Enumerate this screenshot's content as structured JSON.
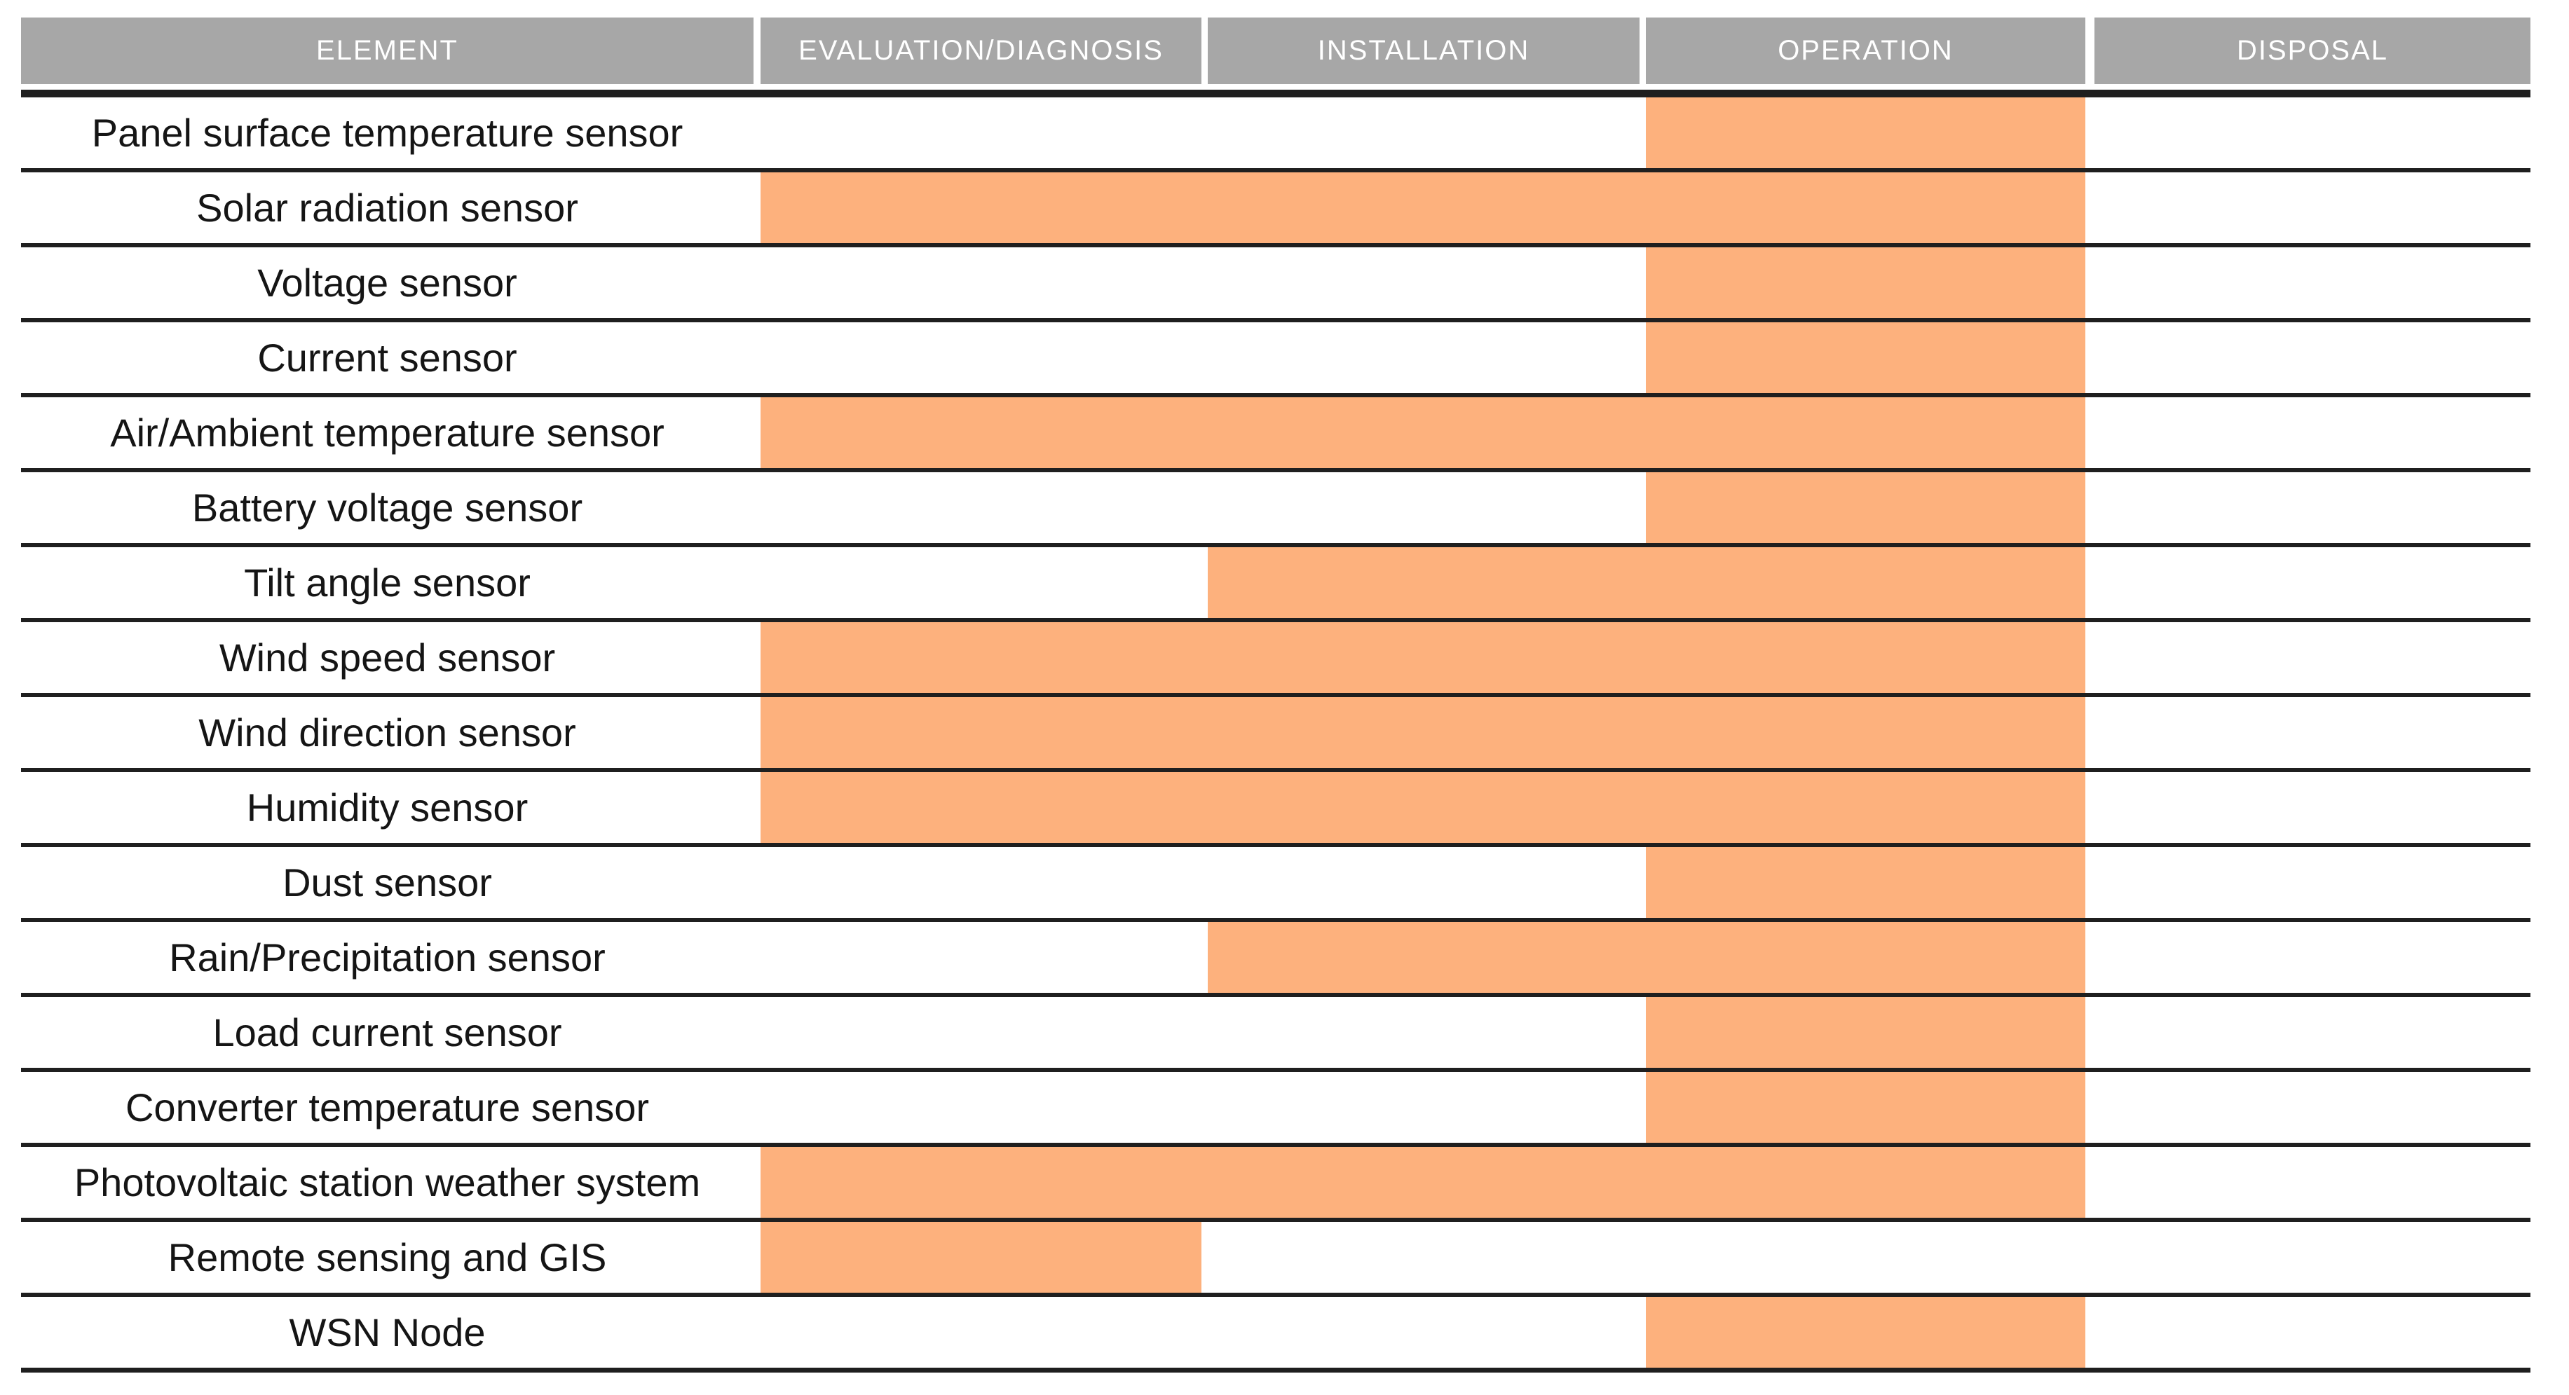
{
  "colors": {
    "background": "#ffffff",
    "header_bg": "#a7a7a7",
    "header_text": "#ffffff",
    "bar_fill": "#fdb17d",
    "rule": "#1f1f1f",
    "row_text": "#151515"
  },
  "table": {
    "columns": [
      {
        "key": "element",
        "label": "ELEMENT"
      },
      {
        "key": "evaluation",
        "label": "EVALUATION/DIAGNOSIS"
      },
      {
        "key": "installation",
        "label": "INSTALLATION"
      },
      {
        "key": "operation",
        "label": "OPERATION"
      },
      {
        "key": "disposal",
        "label": "DISPOSAL"
      }
    ],
    "rows": [
      {
        "label": "Panel surface temperature sensor",
        "phase_start": "operation",
        "phase_end": "operation"
      },
      {
        "label": "Solar radiation sensor",
        "phase_start": "evaluation",
        "phase_end": "operation"
      },
      {
        "label": "Voltage sensor",
        "phase_start": "operation",
        "phase_end": "operation"
      },
      {
        "label": "Current sensor",
        "phase_start": "operation",
        "phase_end": "operation"
      },
      {
        "label": "Air/Ambient temperature sensor",
        "phase_start": "evaluation",
        "phase_end": "operation"
      },
      {
        "label": "Battery voltage sensor",
        "phase_start": "operation",
        "phase_end": "operation"
      },
      {
        "label": "Tilt angle sensor",
        "phase_start": "installation",
        "phase_end": "operation"
      },
      {
        "label": "Wind speed sensor",
        "phase_start": "evaluation",
        "phase_end": "operation"
      },
      {
        "label": "Wind direction sensor",
        "phase_start": "evaluation",
        "phase_end": "operation"
      },
      {
        "label": "Humidity sensor",
        "phase_start": "evaluation",
        "phase_end": "operation"
      },
      {
        "label": "Dust sensor",
        "phase_start": "operation",
        "phase_end": "operation"
      },
      {
        "label": "Rain/Precipitation sensor",
        "phase_start": "installation",
        "phase_end": "operation"
      },
      {
        "label": "Load current sensor",
        "phase_start": "operation",
        "phase_end": "operation"
      },
      {
        "label": "Converter temperature sensor",
        "phase_start": "operation",
        "phase_end": "operation"
      },
      {
        "label": "Photovoltaic station weather system",
        "phase_start": "evaluation",
        "phase_end": "operation"
      },
      {
        "label": "Remote sensing and GIS",
        "phase_start": "evaluation",
        "phase_end": "evaluation"
      },
      {
        "label": "WSN Node",
        "phase_start": "operation",
        "phase_end": "operation"
      }
    ]
  },
  "chart_data": {
    "type": "table",
    "title": "",
    "columns": [
      "ELEMENT",
      "EVALUATION/DIAGNOSIS",
      "INSTALLATION",
      "OPERATION",
      "DISPOSAL"
    ],
    "legend_position": "none",
    "grid": "horizontal-rules-only",
    "rows": [
      {
        "element": "Panel surface temperature sensor",
        "covered_phases": [
          "OPERATION"
        ]
      },
      {
        "element": "Solar radiation sensor",
        "covered_phases": [
          "EVALUATION/DIAGNOSIS",
          "INSTALLATION",
          "OPERATION"
        ]
      },
      {
        "element": "Voltage sensor",
        "covered_phases": [
          "OPERATION"
        ]
      },
      {
        "element": "Current sensor",
        "covered_phases": [
          "OPERATION"
        ]
      },
      {
        "element": "Air/Ambient temperature sensor",
        "covered_phases": [
          "EVALUATION/DIAGNOSIS",
          "INSTALLATION",
          "OPERATION"
        ]
      },
      {
        "element": "Battery voltage sensor",
        "covered_phases": [
          "OPERATION"
        ]
      },
      {
        "element": "Tilt angle sensor",
        "covered_phases": [
          "INSTALLATION",
          "OPERATION"
        ]
      },
      {
        "element": "Wind speed sensor",
        "covered_phases": [
          "EVALUATION/DIAGNOSIS",
          "INSTALLATION",
          "OPERATION"
        ]
      },
      {
        "element": "Wind direction sensor",
        "covered_phases": [
          "EVALUATION/DIAGNOSIS",
          "INSTALLATION",
          "OPERATION"
        ]
      },
      {
        "element": "Humidity sensor",
        "covered_phases": [
          "EVALUATION/DIAGNOSIS",
          "INSTALLATION",
          "OPERATION"
        ]
      },
      {
        "element": "Dust sensor",
        "covered_phases": [
          "OPERATION"
        ]
      },
      {
        "element": "Rain/Precipitation sensor",
        "covered_phases": [
          "INSTALLATION",
          "OPERATION"
        ]
      },
      {
        "element": "Load current sensor",
        "covered_phases": [
          "OPERATION"
        ]
      },
      {
        "element": "Converter temperature sensor",
        "covered_phases": [
          "OPERATION"
        ]
      },
      {
        "element": "Photovoltaic station weather system",
        "covered_phases": [
          "EVALUATION/DIAGNOSIS",
          "INSTALLATION",
          "OPERATION"
        ]
      },
      {
        "element": "Remote sensing and GIS",
        "covered_phases": [
          "EVALUATION/DIAGNOSIS"
        ]
      },
      {
        "element": "WSN Node",
        "covered_phases": [
          "OPERATION"
        ]
      }
    ]
  }
}
